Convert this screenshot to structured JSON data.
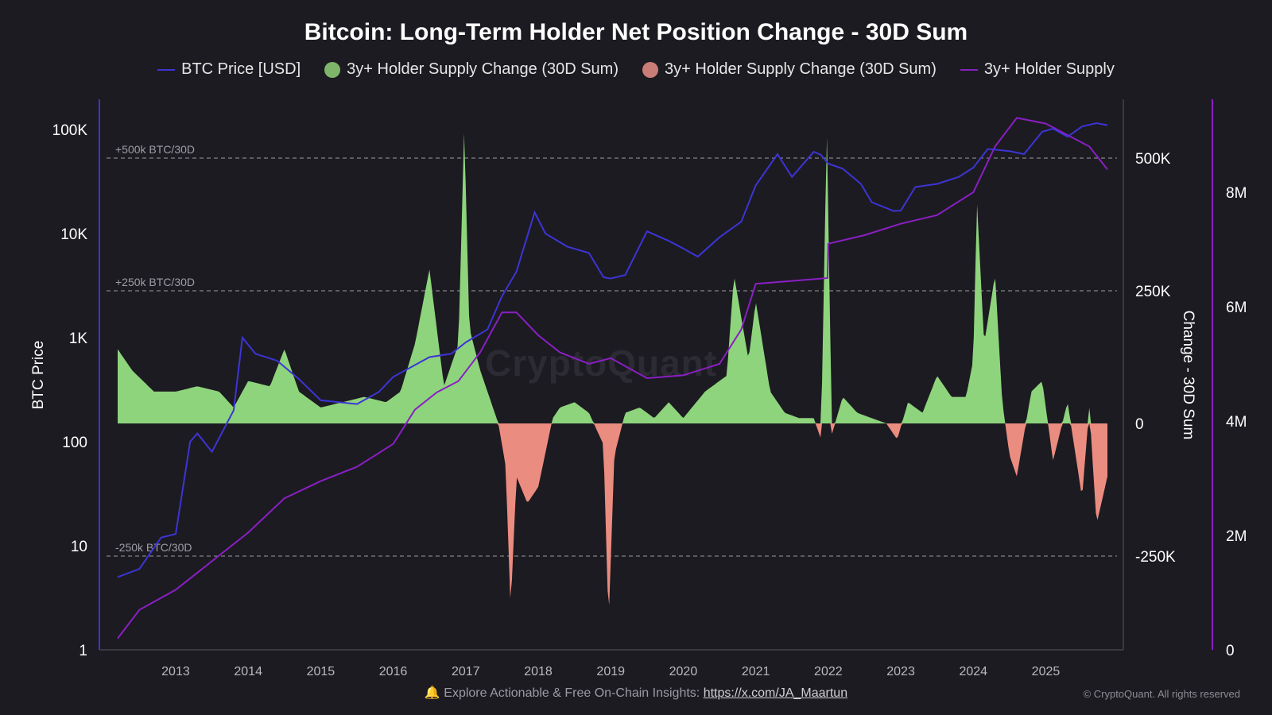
{
  "title": "Bitcoin: Long-Term Holder Net Position Change - 30D Sum",
  "legend": [
    {
      "name": "legend-btc-price",
      "label": "BTC Price [USD]",
      "kind": "line",
      "color": "#3d34d6"
    },
    {
      "name": "legend-supply-change-positive",
      "label": "3y+ Holder Supply Change (30D Sum)",
      "kind": "dot",
      "color": "#7fb56b"
    },
    {
      "name": "legend-supply-change-negative",
      "label": "3y+ Holder Supply Change (30D Sum)",
      "kind": "dot",
      "color": "#c97d76"
    },
    {
      "name": "legend-holder-supply",
      "label": "3y+ Holder Supply",
      "kind": "line",
      "color": "#8a1fc4"
    }
  ],
  "footer": {
    "icon": "bell-icon",
    "text": "Explore Actionable & Free On-Chain Insights:",
    "link": "https://x.com/JA_Maartun"
  },
  "copyright": "© CryptoQuant. All rights reserved",
  "watermark": "CryptoQuant",
  "chart_data": {
    "type": "bar+line",
    "title": "Bitcoin: Long-Term Holder Net Position Change - 30D Sum",
    "xlabel": "",
    "x_ticks": [
      "2013",
      "2014",
      "2015",
      "2016",
      "2017",
      "2018",
      "2019",
      "2020",
      "2021",
      "2022",
      "2023",
      "2024",
      "2025"
    ],
    "x_range": [
      2012.2,
      2025.85
    ],
    "left_axis": {
      "label": "BTC Price",
      "scale": "log",
      "range": [
        1,
        200000
      ],
      "ticks": [
        1,
        10,
        100,
        1000,
        10000,
        100000
      ],
      "tick_labels": [
        "1",
        "10",
        "100",
        "1K",
        "10K",
        "100K"
      ]
    },
    "right_axis": {
      "label": "Change - 30D Sum",
      "range": [
        -430000,
        620000
      ],
      "ticks": [
        500000,
        250000,
        0,
        -250000
      ],
      "tick_labels": [
        "500K",
        "250K",
        "0",
        "-250K"
      ]
    },
    "far_right_axis": {
      "label": "",
      "range": [
        0,
        9800000
      ],
      "ticks": [
        0,
        2000000,
        4000000,
        6000000,
        8000000
      ],
      "tick_labels": [
        "0",
        "2M",
        "4M",
        "6M",
        "8M"
      ]
    },
    "reference_lines": [
      {
        "value": 500000,
        "label": "+500k BTC/30D"
      },
      {
        "value": 250000,
        "label": "+250k BTC/30D"
      },
      {
        "value": -250000,
        "label": "-250k BTC/30D"
      }
    ],
    "series": [
      {
        "name": "BTC Price [USD]",
        "axis": "left",
        "color": "#3d34d6",
        "x": [
          2012.2,
          2012.5,
          2012.8,
          2013.0,
          2013.2,
          2013.3,
          2013.5,
          2013.8,
          2013.92,
          2014.1,
          2014.4,
          2014.7,
          2015.0,
          2015.5,
          2015.8,
          2016.0,
          2016.5,
          2016.8,
          2017.0,
          2017.3,
          2017.5,
          2017.7,
          2017.95,
          2018.1,
          2018.4,
          2018.7,
          2018.9,
          2019.0,
          2019.2,
          2019.5,
          2019.8,
          2020.0,
          2020.2,
          2020.5,
          2020.8,
          2021.0,
          2021.3,
          2021.5,
          2021.8,
          2021.9,
          2022.0,
          2022.2,
          2022.45,
          2022.6,
          2022.9,
          2023.0,
          2023.2,
          2023.5,
          2023.8,
          2024.0,
          2024.2,
          2024.5,
          2024.7,
          2024.95,
          2025.1,
          2025.3,
          2025.5,
          2025.7,
          2025.85
        ],
        "values": [
          5,
          6,
          12,
          13,
          100,
          120,
          80,
          200,
          1000,
          700,
          600,
          400,
          250,
          230,
          300,
          420,
          650,
          700,
          900,
          1200,
          2500,
          4300,
          16000,
          10000,
          7500,
          6500,
          3800,
          3700,
          4000,
          10500,
          8500,
          7200,
          6000,
          9200,
          13000,
          29000,
          58000,
          35000,
          61000,
          57000,
          47000,
          42000,
          30000,
          20000,
          16500,
          16600,
          28000,
          30000,
          35000,
          43000,
          65000,
          62000,
          58000,
          95000,
          102000,
          85000,
          107000,
          115000,
          110000
        ]
      },
      {
        "name": "3y+ Holder Supply",
        "axis": "far_right",
        "color": "#8a1fc4",
        "x": [
          2012.2,
          2012.5,
          2013.0,
          2013.5,
          2014.0,
          2014.5,
          2015.0,
          2015.5,
          2016.0,
          2016.3,
          2016.6,
          2016.9,
          2017.2,
          2017.5,
          2017.7,
          2018.0,
          2018.3,
          2018.7,
          2019.0,
          2019.5,
          2020.0,
          2020.5,
          2020.8,
          2021.0,
          2021.5,
          2021.99,
          2022.0,
          2022.5,
          2023.0,
          2023.5,
          2024.0,
          2024.3,
          2024.6,
          2025.0,
          2025.3,
          2025.6,
          2025.85
        ],
        "values": [
          200000,
          700000,
          1050000,
          1550000,
          2050000,
          2650000,
          2950000,
          3200000,
          3600000,
          4200000,
          4500000,
          4700000,
          5200000,
          5900000,
          5900000,
          5500000,
          5200000,
          5000000,
          5100000,
          4750000,
          4800000,
          5000000,
          5600000,
          6400000,
          6450000,
          6500000,
          7100000,
          7250000,
          7450000,
          7600000,
          8000000,
          8800000,
          9300000,
          9200000,
          9000000,
          8800000,
          8400000
        ]
      },
      {
        "name": "3y+ Holder Supply Change (30D Sum)",
        "axis": "right",
        "kind": "area",
        "color_positive": "#8ed47c",
        "color_negative": "#eb8c80",
        "x": [
          2012.2,
          2012.4,
          2012.7,
          2013.0,
          2013.3,
          2013.6,
          2013.8,
          2014.0,
          2014.3,
          2014.5,
          2014.7,
          2015.0,
          2015.3,
          2015.6,
          2015.9,
          2016.1,
          2016.3,
          2016.5,
          2016.7,
          2016.9,
          2016.98,
          2017.05,
          2017.2,
          2017.3,
          2017.45,
          2017.55,
          2017.62,
          2017.7,
          2017.85,
          2018.0,
          2018.2,
          2018.3,
          2018.5,
          2018.7,
          2018.9,
          2018.97,
          2019.05,
          2019.2,
          2019.4,
          2019.6,
          2019.8,
          2020.0,
          2020.3,
          2020.6,
          2020.7,
          2020.9,
          2021.0,
          2021.2,
          2021.4,
          2021.6,
          2021.8,
          2021.9,
          2021.98,
          2022.05,
          2022.2,
          2022.4,
          2022.6,
          2022.8,
          2022.95,
          2023.1,
          2023.3,
          2023.5,
          2023.7,
          2023.9,
          2024.0,
          2024.05,
          2024.15,
          2024.3,
          2024.4,
          2024.5,
          2024.6,
          2024.8,
          2024.95,
          2025.1,
          2025.3,
          2025.5,
          2025.6,
          2025.7,
          2025.85
        ],
        "values": [
          140000,
          100000,
          60000,
          60000,
          70000,
          60000,
          30000,
          80000,
          70000,
          140000,
          60000,
          30000,
          40000,
          50000,
          40000,
          60000,
          150000,
          290000,
          70000,
          150000,
          560000,
          180000,
          100000,
          60000,
          0,
          -80000,
          -350000,
          -100000,
          -150000,
          -120000,
          10000,
          30000,
          40000,
          20000,
          -40000,
          -380000,
          -60000,
          20000,
          30000,
          10000,
          40000,
          10000,
          60000,
          90000,
          280000,
          120000,
          230000,
          60000,
          20000,
          10000,
          10000,
          -30000,
          560000,
          -20000,
          50000,
          20000,
          10000,
          0,
          -30000,
          40000,
          20000,
          90000,
          50000,
          50000,
          120000,
          420000,
          150000,
          280000,
          40000,
          -60000,
          -100000,
          60000,
          80000,
          -70000,
          40000,
          -140000,
          30000,
          -190000,
          -100000
        ]
      }
    ]
  }
}
